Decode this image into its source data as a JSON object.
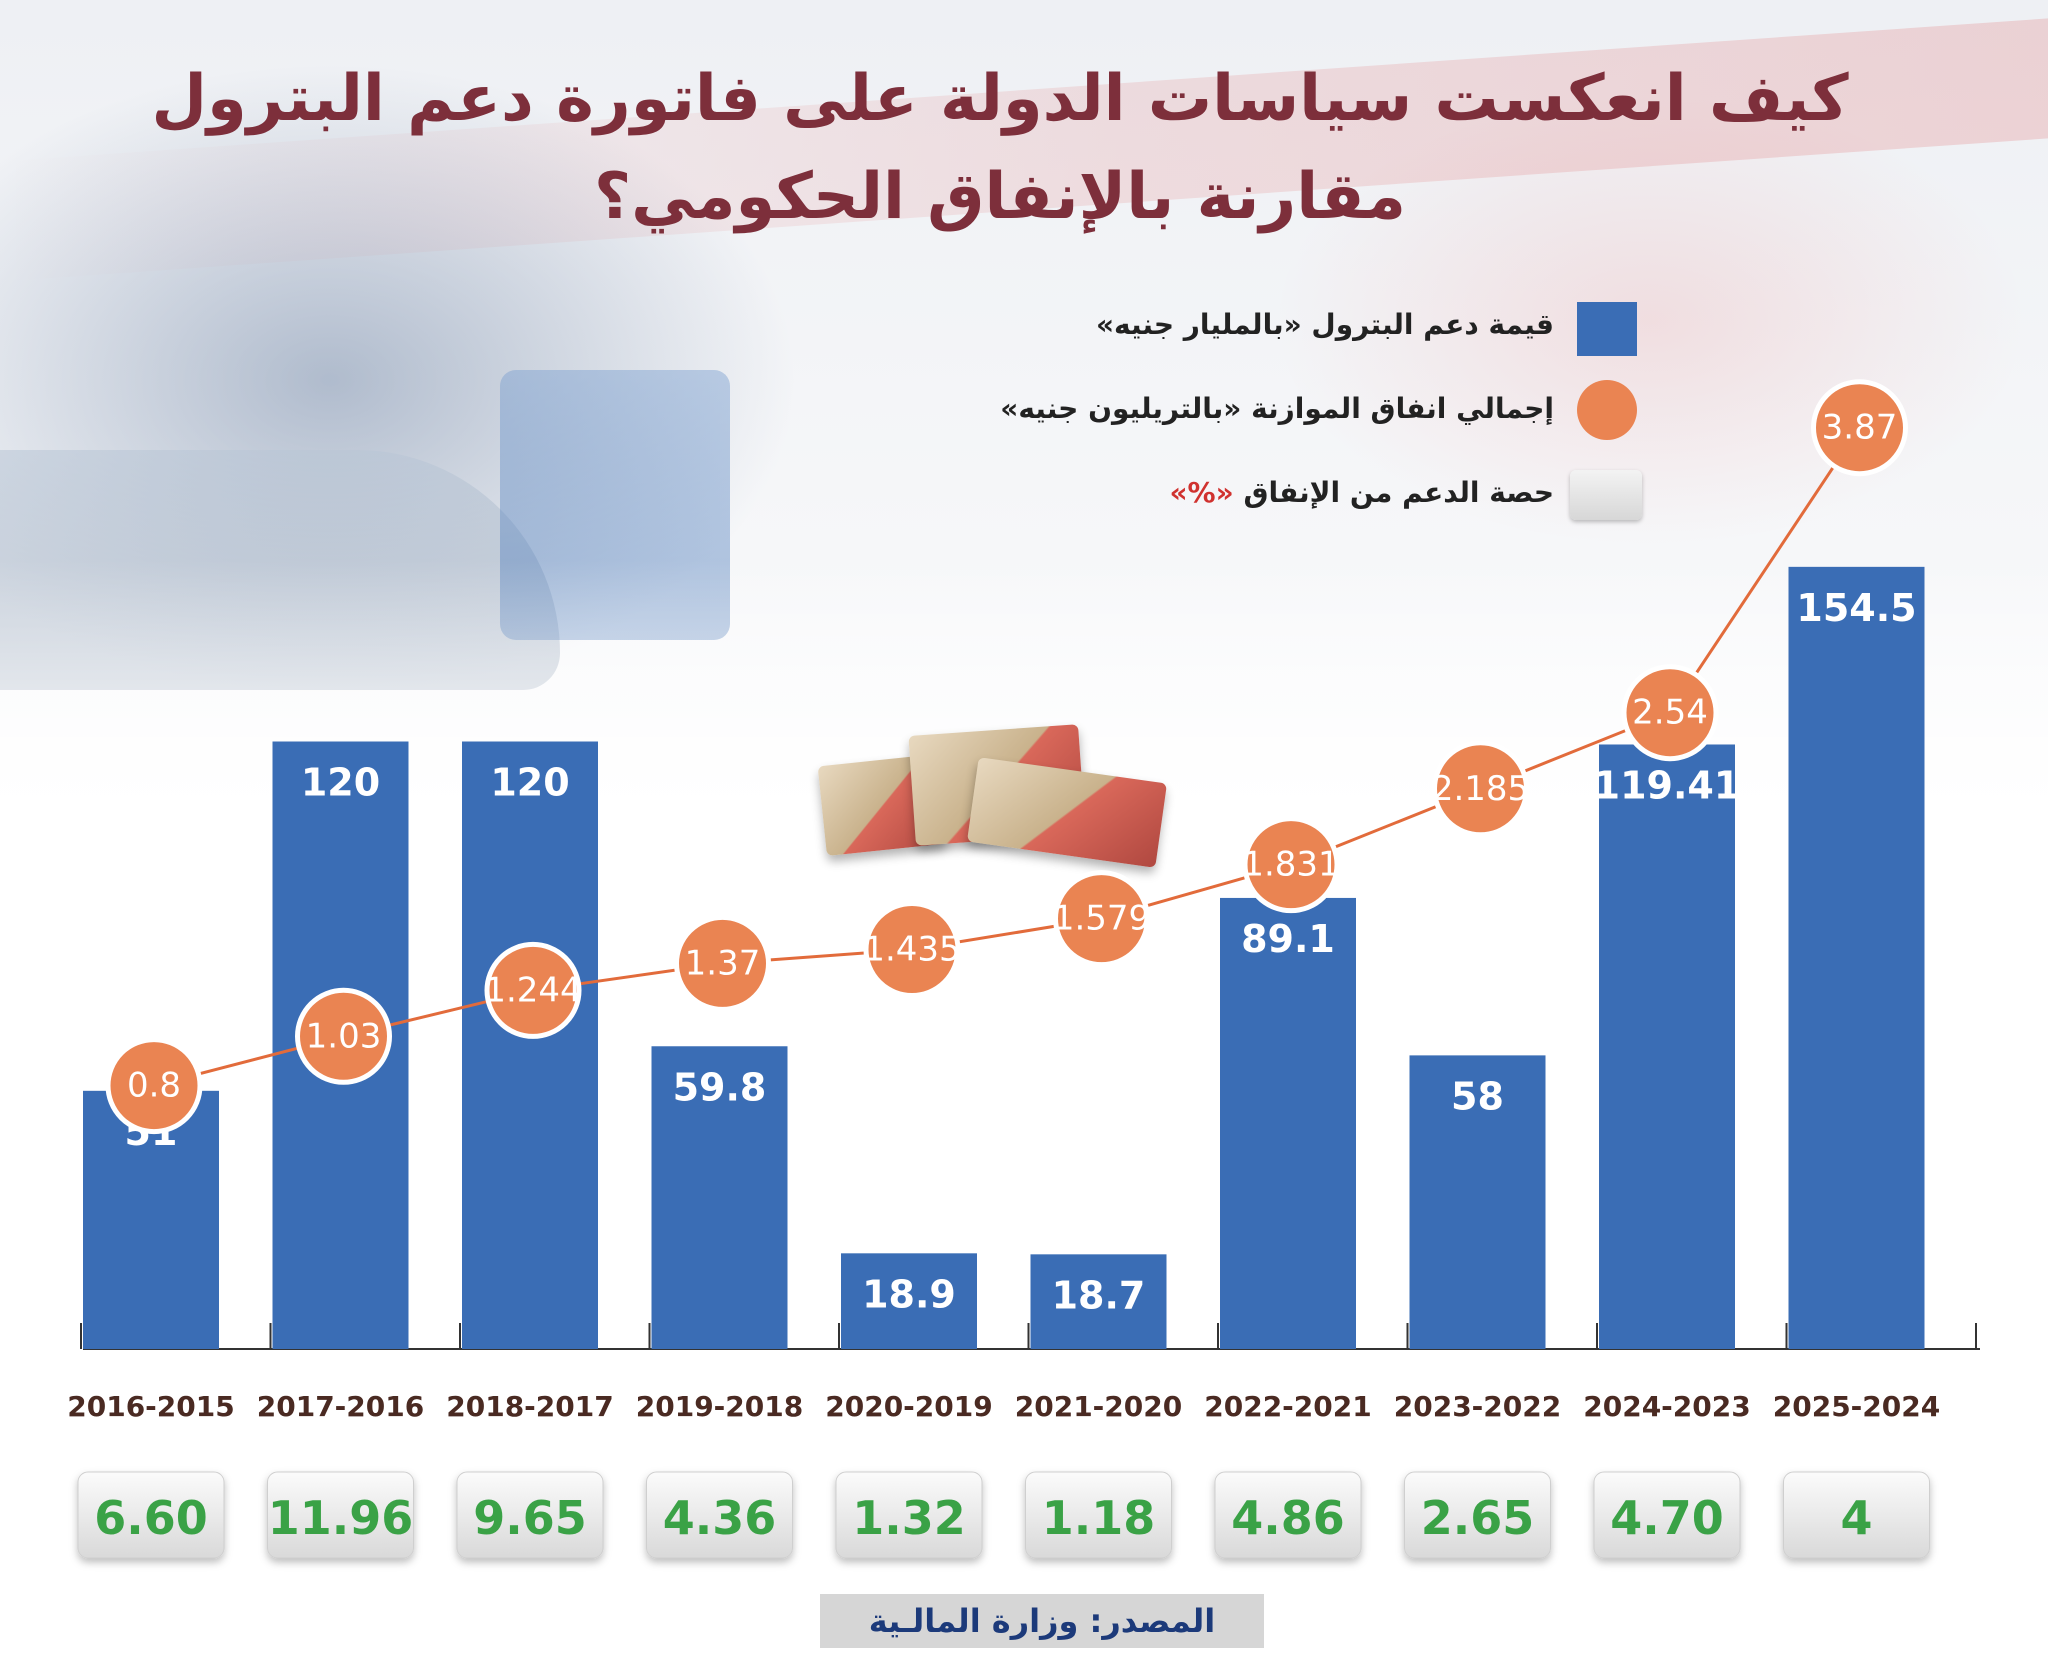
{
  "title": {
    "line1": "كيف انعكست سياسات الدولة على فاتورة دعم البترول",
    "line2": "مقارنة بالإنفاق الحكومي؟"
  },
  "legend": {
    "bar_label": "قيمة دعم البترول «بالمليار جنيه»",
    "dot_label": "إجمالي انفاق الموازنة «بالتريليون جنيه»",
    "box_label": "حصة الدعم من الإنفاق",
    "box_unit": "«%»"
  },
  "colors": {
    "bar": "#3a6db5",
    "dot": "#ea8452",
    "share_text": "#3aa246",
    "title": "#7d2f3b"
  },
  "chart_data": {
    "type": "bar",
    "categories": [
      "2016-2015",
      "2017-2016",
      "2018-2017",
      "2019-2018",
      "2020-2019",
      "2021-2020",
      "2022-2021",
      "2023-2022",
      "2024-2023",
      "2025-2024"
    ],
    "series": [
      {
        "name": "قيمة دعم البترول «بالمليار جنيه»",
        "type": "bar",
        "values": [
          51,
          120,
          120,
          59.8,
          18.9,
          18.7,
          89.1,
          58,
          119.41,
          154.5
        ],
        "labels": [
          "51",
          "120",
          "120",
          "59.8",
          "18.9",
          "18.7",
          "89.1",
          "58",
          "119.41",
          "154.5"
        ]
      },
      {
        "name": "إجمالي انفاق الموازنة «بالتريليون جنيه»",
        "type": "line",
        "values": [
          0.8,
          1.03,
          1.244,
          1.37,
          1.435,
          1.579,
          1.831,
          2.185,
          2.54,
          3.87
        ],
        "labels": [
          "0.8",
          "1.03",
          "1.244",
          "1.37",
          "1.435",
          "1.579",
          "1.831",
          "2.185",
          "2.54",
          "3.87"
        ]
      },
      {
        "name": "حصة الدعم من الإنفاق «%»",
        "type": "table",
        "values": [
          6.6,
          11.96,
          9.65,
          4.36,
          1.32,
          1.18,
          4.86,
          2.65,
          4.7,
          4
        ],
        "labels": [
          "6.60",
          "11.96",
          "9.65",
          "4.36",
          "1.32",
          "1.18",
          "4.86",
          "2.65",
          "4.70",
          "4"
        ]
      }
    ],
    "bar_ylim": [
      0,
      160
    ],
    "line_ylim": [
      0,
      4.2
    ]
  },
  "source": "المصدر: وزارة المالـية"
}
